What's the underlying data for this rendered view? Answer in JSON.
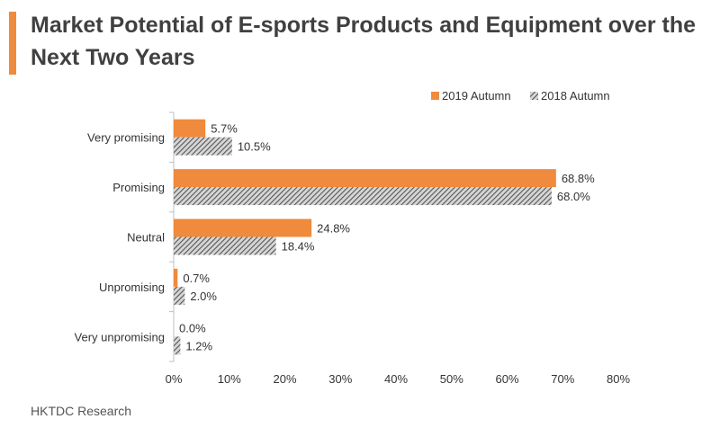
{
  "header": {
    "title": "Market Potential of E-sports Products and Equipment over the Next Two Years",
    "accent_color": "#F08A3C"
  },
  "footer": {
    "source": "HKTDC Research"
  },
  "chart_data": {
    "type": "bar",
    "orientation": "horizontal",
    "title": "Market Potential of E-sports Products and Equipment over the Next Two Years",
    "categories": [
      "Very promising",
      "Promising",
      "Neutral",
      "Unpromising",
      "Very unpromising"
    ],
    "series": [
      {
        "name": "2019 Autumn",
        "values": [
          5.7,
          68.8,
          24.8,
          0.7,
          0.0
        ],
        "labels": [
          "5.7%",
          "68.8%",
          "24.8%",
          "0.7%",
          "0.0%"
        ],
        "color": "#F08A3C",
        "pattern": "solid"
      },
      {
        "name": "2018 Autumn",
        "values": [
          10.5,
          68.0,
          18.4,
          2.0,
          1.2
        ],
        "labels": [
          "10.5%",
          "68.0%",
          "18.4%",
          "2.0%",
          "1.2%"
        ],
        "color": "#7F7F7F",
        "pattern": "hatched"
      }
    ],
    "xlim": [
      0,
      80
    ],
    "xticks": [
      "0%",
      "10%",
      "20%",
      "30%",
      "40%",
      "50%",
      "60%",
      "70%",
      "80%"
    ],
    "legend_position": "top-right",
    "grid": false
  }
}
